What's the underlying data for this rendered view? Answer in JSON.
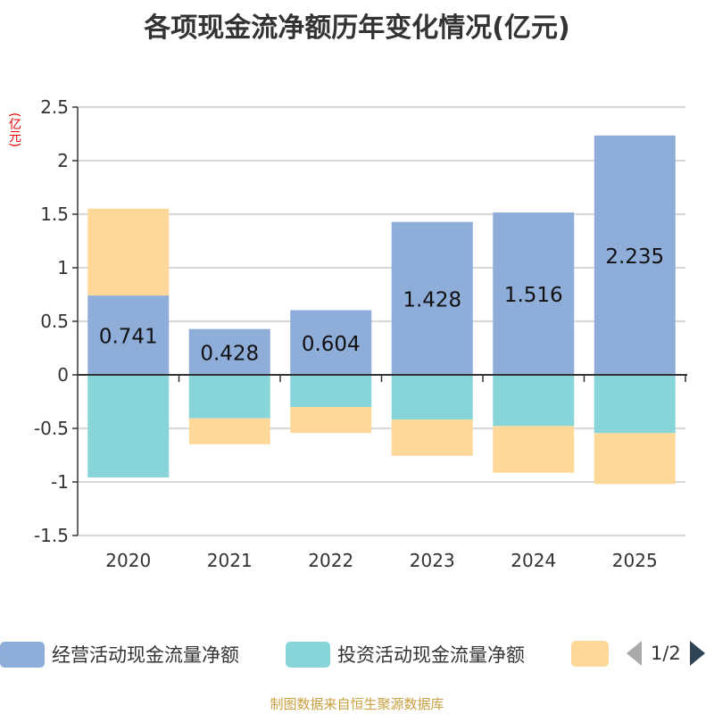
{
  "title": "各项现金流净额历年变化情况(亿元)",
  "source": "制图数据来自恒生聚源数据库",
  "pager": "1/2",
  "chart_data": {
    "type": "bar",
    "stacked": true,
    "title": "各项现金流净额历年变化情况(亿元)",
    "ylabel": "(亿元)",
    "ylim": [
      -1.5,
      2.5
    ],
    "yticks": [
      "-1.5",
      "-1",
      "-0.5",
      "0",
      "0.5",
      "1",
      "1.5",
      "2",
      "2.5"
    ],
    "grid": true,
    "legend_position": "bottom",
    "categories": [
      "2020",
      "2021",
      "2022",
      "2023",
      "2024",
      "2025"
    ],
    "series": [
      {
        "name": "经营活动现金流量净额",
        "color": "#8eadd9",
        "values": [
          0.741,
          0.428,
          0.604,
          1.428,
          1.516,
          2.235
        ],
        "labels": [
          "0.741",
          "0.428",
          "0.604",
          "1.428",
          "1.516",
          "2.235"
        ]
      },
      {
        "name": "投资活动现金流量净额",
        "color": "#87d5d8",
        "values": [
          -0.958,
          -0.406,
          -0.3,
          -0.417,
          -0.478,
          -0.544
        ]
      },
      {
        "name": "",
        "color": "#fed899",
        "values": [
          0.81,
          -0.242,
          -0.242,
          -0.339,
          -0.436,
          -0.475
        ]
      }
    ]
  }
}
